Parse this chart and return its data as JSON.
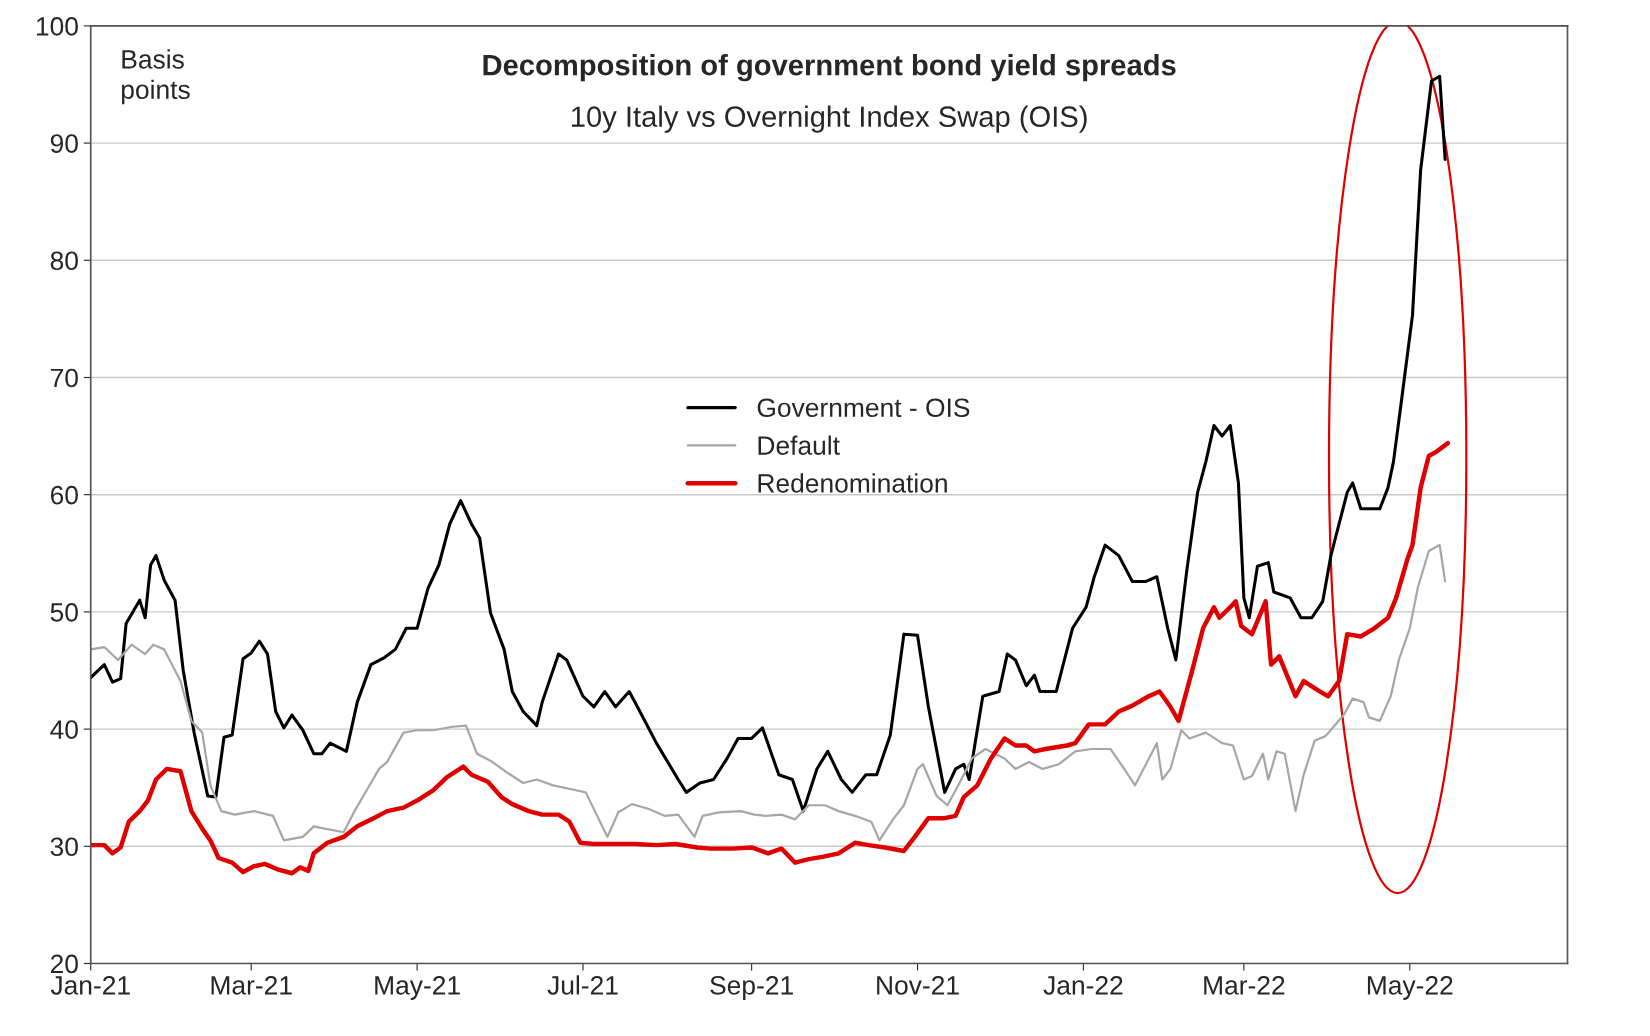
{
  "chart_data": {
    "type": "line",
    "title": "Decomposition of government bond yield spreads",
    "subtitle": "10y Italy vs Overnight Index Swap (OIS)",
    "ylabel": "Basis\npoints",
    "xlim": [
      "2021-01-01",
      "2022-06-28"
    ],
    "xticks": [
      {
        "value": "2021-01-01",
        "label": "Jan-21"
      },
      {
        "value": "2021-03-01",
        "label": "Mar-21"
      },
      {
        "value": "2021-05-01",
        "label": "May-21"
      },
      {
        "value": "2021-07-01",
        "label": "Jul-21"
      },
      {
        "value": "2021-09-01",
        "label": "Sep-21"
      },
      {
        "value": "2021-11-01",
        "label": "Nov-21"
      },
      {
        "value": "2022-01-01",
        "label": "Jan-22"
      },
      {
        "value": "2022-03-01",
        "label": "Mar-22"
      },
      {
        "value": "2022-05-01",
        "label": "May-22"
      }
    ],
    "ylim": [
      20,
      100
    ],
    "yticks": [
      20,
      30,
      40,
      50,
      60,
      70,
      80,
      90,
      100
    ],
    "grid": "y",
    "legend": "center",
    "line_style": "solid",
    "marker": "none",
    "series": [
      {
        "name": "Government - OIS",
        "color": "#000000",
        "x": [
          "2021-01-01",
          "2021-01-06",
          "2021-01-09",
          "2021-01-12",
          "2021-01-14",
          "2021-01-19",
          "2021-01-21",
          "2021-01-23",
          "2021-01-25",
          "2021-01-28",
          "2021-02-01",
          "2021-02-04",
          "2021-02-08",
          "2021-02-13",
          "2021-02-16",
          "2021-02-19",
          "2021-02-22",
          "2021-02-26",
          "2021-03-01",
          "2021-03-04",
          "2021-03-07",
          "2021-03-10",
          "2021-03-13",
          "2021-03-16",
          "2021-03-20",
          "2021-03-24",
          "2021-03-27",
          "2021-03-30",
          "2021-04-05",
          "2021-04-09",
          "2021-04-14",
          "2021-04-19",
          "2021-04-23",
          "2021-04-27",
          "2021-05-01",
          "2021-05-05",
          "2021-05-09",
          "2021-05-13",
          "2021-05-17",
          "2021-05-21",
          "2021-05-24",
          "2021-05-28",
          "2021-06-02",
          "2021-06-05",
          "2021-06-09",
          "2021-06-14",
          "2021-06-16",
          "2021-06-22",
          "2021-06-25",
          "2021-07-01",
          "2021-07-05",
          "2021-07-09",
          "2021-07-13",
          "2021-07-18",
          "2021-07-21",
          "2021-07-28",
          "2021-08-05",
          "2021-08-08",
          "2021-08-13",
          "2021-08-18",
          "2021-08-23",
          "2021-08-27",
          "2021-09-01",
          "2021-09-05",
          "2021-09-11",
          "2021-09-16",
          "2021-09-20",
          "2021-09-25",
          "2021-09-29",
          "2021-10-04",
          "2021-10-08",
          "2021-10-13",
          "2021-10-17",
          "2021-10-22",
          "2021-10-27",
          "2021-11-01",
          "2021-11-05",
          "2021-11-11",
          "2021-11-15",
          "2021-11-18",
          "2021-11-20",
          "2021-11-25",
          "2021-12-01",
          "2021-12-04",
          "2021-12-07",
          "2021-12-11",
          "2021-12-14",
          "2021-12-16",
          "2021-12-22",
          "2021-12-28",
          "2022-01-02",
          "2022-01-05",
          "2022-01-09",
          "2022-01-14",
          "2022-01-19",
          "2022-01-24",
          "2022-01-28",
          "2022-02-01",
          "2022-02-04",
          "2022-02-08",
          "2022-02-12",
          "2022-02-15",
          "2022-02-18",
          "2022-02-21",
          "2022-02-24",
          "2022-02-27",
          "2022-03-01",
          "2022-03-03",
          "2022-03-06",
          "2022-03-10",
          "2022-03-12",
          "2022-03-18",
          "2022-03-22",
          "2022-03-26",
          "2022-03-30",
          "2022-04-02",
          "2022-04-08",
          "2022-04-10",
          "2022-04-13",
          "2022-04-20",
          "2022-04-23",
          "2022-04-25",
          "2022-04-28",
          "2022-05-02",
          "2022-05-05",
          "2022-05-09",
          "2022-05-12",
          "2022-05-14"
        ],
        "values": [
          44.4,
          45.5,
          44,
          44.3,
          49,
          51,
          49.5,
          54,
          54.8,
          52.7,
          51,
          45,
          39.7,
          34.3,
          34.2,
          39.3,
          39.5,
          46,
          46.5,
          47.5,
          46.4,
          41.5,
          40.1,
          41.2,
          39.9,
          37.9,
          37.9,
          38.8,
          38.1,
          42.3,
          45.5,
          46.1,
          46.8,
          48.6,
          48.6,
          52,
          54,
          57.5,
          59.5,
          57.5,
          56.3,
          49.9,
          46.8,
          43.2,
          41.5,
          40.3,
          42.3,
          46.4,
          45.9,
          42.8,
          41.9,
          43.2,
          41.9,
          43.2,
          41.9,
          38.8,
          35.7,
          34.6,
          35.4,
          35.7,
          37.5,
          39.2,
          39.2,
          40.1,
          36.1,
          35.7,
          33,
          36.6,
          38.1,
          35.7,
          34.6,
          36.1,
          36.1,
          39.5,
          48.1,
          48,
          41.9,
          34.6,
          36.6,
          37,
          35.7,
          42.8,
          43.2,
          46.4,
          45.9,
          43.7,
          44.6,
          43.2,
          43.2,
          48.6,
          50.4,
          53,
          55.7,
          54.8,
          52.6,
          52.6,
          53,
          48.6,
          45.9,
          53.5,
          60.2,
          62.8,
          65.9,
          65,
          65.9,
          61,
          51.2,
          49.5,
          53.9,
          54.2,
          51.7,
          51.2,
          49.5,
          49.5,
          50.9,
          54.8,
          60.2,
          61,
          58.8,
          58.8,
          60.6,
          62.8,
          68.1,
          75.3,
          87.7,
          95.3,
          95.7,
          88.6
        ]
      },
      {
        "name": "Default",
        "color": "#a6a6a6",
        "x": [
          "2021-01-01",
          "2021-01-06",
          "2021-01-11",
          "2021-01-16",
          "2021-01-21",
          "2021-01-24",
          "2021-01-28",
          "2021-02-03",
          "2021-02-07",
          "2021-02-11",
          "2021-02-14",
          "2021-02-18",
          "2021-02-23",
          "2021-03-02",
          "2021-03-09",
          "2021-03-13",
          "2021-03-20",
          "2021-03-24",
          "2021-03-28",
          "2021-04-04",
          "2021-04-08",
          "2021-04-13",
          "2021-04-17",
          "2021-04-20",
          "2021-04-26",
          "2021-05-01",
          "2021-05-07",
          "2021-05-14",
          "2021-05-19",
          "2021-05-23",
          "2021-05-28",
          "2021-06-03",
          "2021-06-09",
          "2021-06-14",
          "2021-06-20",
          "2021-06-28",
          "2021-07-02",
          "2021-07-10",
          "2021-07-14",
          "2021-07-19",
          "2021-07-25",
          "2021-07-31",
          "2021-08-05",
          "2021-08-11",
          "2021-08-14",
          "2021-08-20",
          "2021-08-28",
          "2021-09-02",
          "2021-09-06",
          "2021-09-12",
          "2021-09-17",
          "2021-09-22",
          "2021-09-28",
          "2021-10-03",
          "2021-10-09",
          "2021-10-15",
          "2021-10-18",
          "2021-10-23",
          "2021-10-27",
          "2021-11-01",
          "2021-11-03",
          "2021-11-08",
          "2021-11-12",
          "2021-11-16",
          "2021-11-21",
          "2021-11-26",
          "2021-12-03",
          "2021-12-07",
          "2021-12-12",
          "2021-12-17",
          "2021-12-23",
          "2021-12-29",
          "2022-01-04",
          "2022-01-11",
          "2022-01-16",
          "2022-01-20",
          "2022-01-24",
          "2022-01-28",
          "2022-01-30",
          "2022-02-02",
          "2022-02-06",
          "2022-02-09",
          "2022-02-15",
          "2022-02-21",
          "2022-02-25",
          "2022-03-01",
          "2022-03-04",
          "2022-03-08",
          "2022-03-10",
          "2022-03-13",
          "2022-03-16",
          "2022-03-20",
          "2022-03-23",
          "2022-03-27",
          "2022-03-31",
          "2022-04-03",
          "2022-04-07",
          "2022-04-10",
          "2022-04-14",
          "2022-04-16",
          "2022-04-20",
          "2022-04-24",
          "2022-04-27",
          "2022-05-01",
          "2022-05-04",
          "2022-05-08",
          "2022-05-12",
          "2022-05-14"
        ],
        "values": [
          46.8,
          47,
          45.9,
          47.2,
          46.4,
          47.2,
          46.8,
          44.1,
          40.7,
          39.7,
          35.2,
          33,
          32.7,
          33,
          32.6,
          30.5,
          30.8,
          31.7,
          31.5,
          31.2,
          33,
          35,
          36.6,
          37.2,
          39.7,
          39.9,
          39.9,
          40.2,
          40.3,
          37.9,
          37.3,
          36.3,
          35.4,
          35.7,
          35.2,
          34.8,
          34.6,
          30.8,
          32.9,
          33.6,
          33.2,
          32.6,
          32.7,
          30.8,
          32.6,
          32.9,
          33,
          32.7,
          32.6,
          32.7,
          32.3,
          33.5,
          33.5,
          33,
          32.6,
          32.1,
          30.5,
          32.3,
          33.5,
          36.6,
          37,
          34.3,
          33.5,
          35.2,
          37.5,
          38.3,
          37.5,
          36.6,
          37.2,
          36.6,
          37,
          38.1,
          38.3,
          38.3,
          36.6,
          35.2,
          37,
          38.8,
          35.7,
          36.6,
          39.9,
          39.2,
          39.7,
          38.8,
          38.6,
          35.7,
          36,
          37.9,
          35.7,
          38.1,
          37.9,
          33,
          36.1,
          39,
          39.4,
          40.2,
          41.3,
          42.6,
          42.3,
          41,
          40.7,
          42.8,
          45.9,
          48.6,
          52.1,
          55.2,
          55.7,
          52.6
        ]
      },
      {
        "name": "Redenomination",
        "color": "#e00000",
        "x": [
          "2021-01-01",
          "2021-01-06",
          "2021-01-09",
          "2021-01-12",
          "2021-01-15",
          "2021-01-19",
          "2021-01-22",
          "2021-01-25",
          "2021-01-29",
          "2021-02-03",
          "2021-02-07",
          "2021-02-11",
          "2021-02-14",
          "2021-02-17",
          "2021-02-22",
          "2021-02-26",
          "2021-03-02",
          "2021-03-06",
          "2021-03-11",
          "2021-03-16",
          "2021-03-19",
          "2021-03-22",
          "2021-03-24",
          "2021-03-29",
          "2021-04-04",
          "2021-04-09",
          "2021-04-15",
          "2021-04-20",
          "2021-04-26",
          "2021-05-01",
          "2021-05-07",
          "2021-05-12",
          "2021-05-18",
          "2021-05-21",
          "2021-05-27",
          "2021-06-01",
          "2021-06-05",
          "2021-06-11",
          "2021-06-16",
          "2021-06-22",
          "2021-06-26",
          "2021-06-30",
          "2021-07-05",
          "2021-07-13",
          "2021-07-20",
          "2021-07-28",
          "2021-08-04",
          "2021-08-12",
          "2021-08-17",
          "2021-08-25",
          "2021-09-01",
          "2021-09-07",
          "2021-09-12",
          "2021-09-17",
          "2021-09-22",
          "2021-09-27",
          "2021-10-03",
          "2021-10-09",
          "2021-10-14",
          "2021-10-20",
          "2021-10-27",
          "2021-10-31",
          "2021-11-05",
          "2021-11-11",
          "2021-11-15",
          "2021-11-18",
          "2021-11-23",
          "2021-11-28",
          "2021-12-03",
          "2021-12-07",
          "2021-12-11",
          "2021-12-14",
          "2021-12-18",
          "2021-12-26",
          "2021-12-29",
          "2022-01-03",
          "2022-01-09",
          "2022-01-14",
          "2022-01-19",
          "2022-01-25",
          "2022-01-29",
          "2022-02-02",
          "2022-02-05",
          "2022-02-10",
          "2022-02-14",
          "2022-02-18",
          "2022-02-20",
          "2022-02-24",
          "2022-02-26",
          "2022-02-28",
          "2022-03-04",
          "2022-03-09",
          "2022-03-11",
          "2022-03-14",
          "2022-03-20",
          "2022-03-23",
          "2022-03-29",
          "2022-04-01",
          "2022-04-05",
          "2022-04-08",
          "2022-04-13",
          "2022-04-18",
          "2022-04-23",
          "2022-04-26",
          "2022-04-30",
          "2022-05-02",
          "2022-05-05",
          "2022-05-08",
          "2022-05-11",
          "2022-05-15"
        ],
        "values": [
          30.1,
          30.1,
          29.4,
          29.9,
          32.1,
          33,
          33.9,
          35.7,
          36.6,
          36.4,
          33,
          31.5,
          30.5,
          29,
          28.6,
          27.8,
          28.3,
          28.5,
          28,
          27.7,
          28.2,
          27.9,
          29.4,
          30.3,
          30.8,
          31.7,
          32.4,
          33,
          33.3,
          33.9,
          34.8,
          35.9,
          36.8,
          36.1,
          35.5,
          34.2,
          33.6,
          33,
          32.7,
          32.7,
          32.1,
          30.3,
          30.2,
          30.2,
          30.2,
          30.1,
          30.2,
          29.9,
          29.8,
          29.8,
          29.9,
          29.4,
          29.8,
          28.6,
          28.9,
          29.1,
          29.4,
          30.3,
          30.1,
          29.9,
          29.6,
          30.8,
          32.4,
          32.4,
          32.6,
          34.2,
          35.2,
          37.5,
          39.2,
          38.6,
          38.6,
          38.1,
          38.3,
          38.6,
          38.8,
          40.4,
          40.4,
          41.5,
          42,
          42.8,
          43.2,
          41.9,
          40.7,
          45,
          48.6,
          50.4,
          49.5,
          50.4,
          50.9,
          48.8,
          48.1,
          50.9,
          45.5,
          46.2,
          42.8,
          44.1,
          43.2,
          42.8,
          44.1,
          48.1,
          47.9,
          48.6,
          49.5,
          51.2,
          54.4,
          55.7,
          60.6,
          63.3,
          63.7,
          64.4
        ]
      }
    ]
  }
}
